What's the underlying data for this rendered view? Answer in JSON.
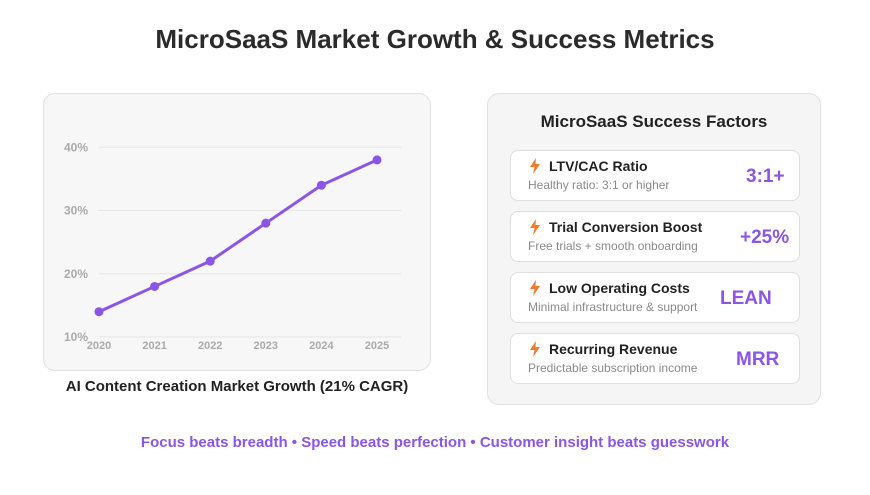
{
  "title": "MicroSaaS Market Growth & Success Metrics",
  "chart_caption": "AI Content Creation Market Growth (21% CAGR)",
  "chart_data": {
    "type": "line",
    "title": "",
    "xlabel": "",
    "ylabel": "",
    "x": [
      "2020",
      "2021",
      "2022",
      "2023",
      "2024",
      "2025"
    ],
    "series": [
      {
        "values": [
          14,
          18,
          22,
          28,
          34,
          38
        ]
      }
    ],
    "y_ticks": [
      "10%",
      "20%",
      "30%",
      "40%"
    ],
    "y_tick_values": [
      10,
      20,
      30,
      40
    ],
    "ylim": [
      8.9,
      42.1
    ],
    "grid": true,
    "line_color": "#8b55e6"
  },
  "factors_panel": {
    "title": "MicroSaaS Success Factors",
    "icon": "lightning-bolt-icon",
    "icon_color": "#f27a2d",
    "items": [
      {
        "name": "LTV/CAC Ratio",
        "desc": "Healthy ratio: 3:1 or higher",
        "value": "3:1+"
      },
      {
        "name": "Trial Conversion Boost",
        "desc": "Free trials + smooth onboarding",
        "value": "+25%"
      },
      {
        "name": "Low Operating Costs",
        "desc": "Minimal infrastructure & support",
        "value": "LEAN"
      },
      {
        "name": "Recurring Revenue",
        "desc": "Predictable subscription income",
        "value": "MRR"
      }
    ]
  },
  "tagline": "Focus beats breadth • Speed beats perfection • Customer insight beats guesswork",
  "accent_color": "#8b55e6"
}
